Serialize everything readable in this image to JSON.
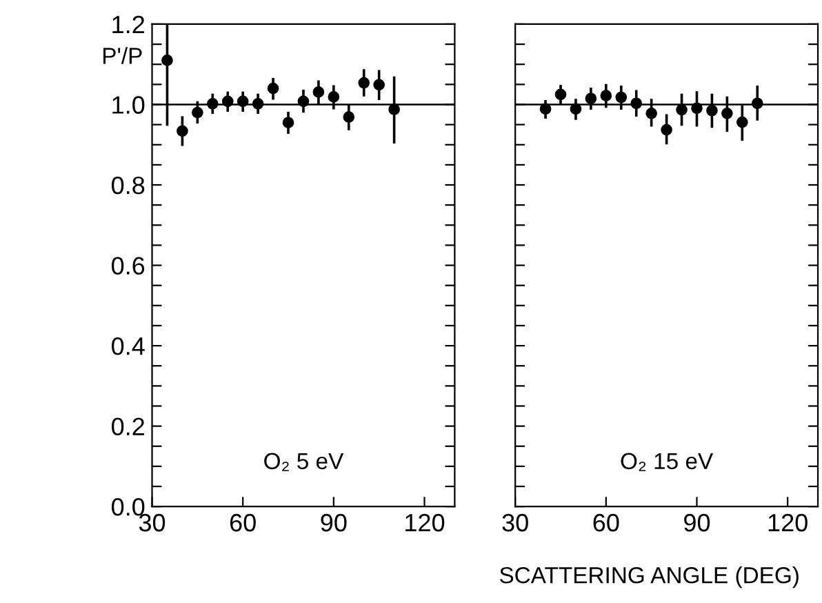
{
  "chart_data": [
    {
      "type": "scatter",
      "ylabel": "P'/P",
      "annotations": [
        "O₂ 5 eV"
      ],
      "marker": "circle",
      "x": [
        35,
        40,
        45,
        50,
        55,
        60,
        65,
        70,
        75,
        80,
        85,
        90,
        95,
        100,
        105,
        110
      ],
      "series": [
        {
          "color": "#000000",
          "values": [
            1.11,
            0.934,
            0.98,
            1.002,
            1.008,
            1.008,
            1.002,
            1.04,
            0.955,
            1.008,
            1.031,
            1.019,
            0.969,
            1.054,
            1.049,
            0.988
          ],
          "errors": [
            [
              0.947,
              1.2
            ],
            [
              0.897,
              0.971
            ],
            [
              0.953,
              1.008
            ],
            [
              0.977,
              1.027
            ],
            [
              0.982,
              1.032
            ],
            [
              0.982,
              1.032
            ],
            [
              0.977,
              1.027
            ],
            [
              1.012,
              1.066
            ],
            [
              0.927,
              0.982
            ],
            [
              0.98,
              1.037
            ],
            [
              1.0,
              1.06
            ],
            [
              0.988,
              1.048
            ],
            [
              0.936,
              1.0
            ],
            [
              1.02,
              1.088
            ],
            [
              1.011,
              1.086
            ],
            [
              0.903,
              1.07
            ]
          ]
        }
      ],
      "xlim": [
        30,
        130
      ],
      "xticks": [
        30,
        60,
        90,
        120
      ],
      "ylim": [
        0,
        1.2
      ],
      "yticks": [
        {
          "value": 0,
          "label": "0.0"
        },
        {
          "value": 0.05,
          "label": null
        },
        {
          "value": 0.1,
          "label": null
        },
        {
          "value": 0.15,
          "label": null
        },
        {
          "value": 0.2,
          "label": "0.2"
        },
        {
          "value": 0.25,
          "label": null
        },
        {
          "value": 0.3,
          "label": null
        },
        {
          "value": 0.35,
          "label": null
        },
        {
          "value": 0.4,
          "label": "0.4"
        },
        {
          "value": 0.45,
          "label": null
        },
        {
          "value": 0.5,
          "label": null
        },
        {
          "value": 0.55,
          "label": null
        },
        {
          "value": 0.6,
          "label": "0.6"
        },
        {
          "value": 0.65,
          "label": null
        },
        {
          "value": 0.7,
          "label": null
        },
        {
          "value": 0.75,
          "label": null
        },
        {
          "value": 0.8,
          "label": "0.8"
        },
        {
          "value": 0.85,
          "label": null
        },
        {
          "value": 0.9,
          "label": null
        },
        {
          "value": 0.95,
          "label": null
        },
        {
          "value": 1.0,
          "label": "1.0"
        },
        {
          "value": 1.05,
          "label": null
        },
        {
          "value": 1.1,
          "label": null
        },
        {
          "value": 1.15,
          "label": null
        },
        {
          "value": 1.2,
          "label": "1.2"
        }
      ],
      "ref_lines": [
        {
          "axis": "y",
          "value": 1.0,
          "color": "#000000"
        }
      ],
      "grid": false,
      "legend": false
    },
    {
      "type": "scatter",
      "xlabel": "SCATTERING ANGLE (DEG)",
      "annotations": [
        "O₂ 15 eV"
      ],
      "marker": "circle",
      "x": [
        40,
        45,
        50,
        55,
        60,
        65,
        70,
        75,
        80,
        85,
        90,
        95,
        100,
        105,
        110
      ],
      "series": [
        {
          "color": "#000000",
          "values": [
            0.989,
            1.025,
            0.989,
            1.015,
            1.022,
            1.018,
            1.003,
            0.978,
            0.937,
            0.987,
            0.991,
            0.985,
            0.978,
            0.956,
            1.003
          ],
          "errors": [
            [
              0.965,
              1.011
            ],
            [
              1.0,
              1.049
            ],
            [
              0.962,
              1.014
            ],
            [
              0.987,
              1.042
            ],
            [
              0.992,
              1.051
            ],
            [
              0.987,
              1.047
            ],
            [
              0.97,
              1.036
            ],
            [
              0.945,
              1.014
            ],
            [
              0.901,
              0.976
            ],
            [
              0.947,
              1.027
            ],
            [
              0.945,
              1.033
            ],
            [
              0.942,
              1.027
            ],
            [
              0.932,
              1.02
            ],
            [
              0.91,
              0.998
            ],
            [
              0.96,
              1.047
            ]
          ]
        }
      ],
      "xlim": [
        30,
        130
      ],
      "xticks": [
        30,
        60,
        90,
        120
      ],
      "ylim": [
        0,
        1.2
      ],
      "yticks": [
        0.0,
        {
          "value": 0.05,
          "label": null
        },
        {
          "value": 0.1,
          "label": null
        },
        {
          "value": 0.15,
          "label": null
        },
        0.2,
        {
          "value": 0.25,
          "label": null
        },
        {
          "value": 0.3,
          "label": null
        },
        {
          "value": 0.35,
          "label": null
        },
        0.4,
        {
          "value": 0.45,
          "label": null
        },
        {
          "value": 0.5,
          "label": null
        },
        {
          "value": 0.55,
          "label": null
        },
        0.6,
        {
          "value": 0.65,
          "label": null
        },
        {
          "value": 0.7,
          "label": null
        },
        {
          "value": 0.75,
          "label": null
        },
        0.8,
        {
          "value": 0.85,
          "label": null
        },
        {
          "value": 0.9,
          "label": null
        },
        {
          "value": 0.95,
          "label": null
        },
        1.0,
        {
          "value": 1.05,
          "label": null
        },
        {
          "value": 1.1,
          "label": null
        },
        {
          "value": 1.15,
          "label": null
        },
        1.2
      ],
      "tick_labels": "x",
      "ref_lines": [
        {
          "axis": "y",
          "value": 1.0,
          "color": "#000000"
        }
      ],
      "grid": false,
      "legend": false
    }
  ]
}
